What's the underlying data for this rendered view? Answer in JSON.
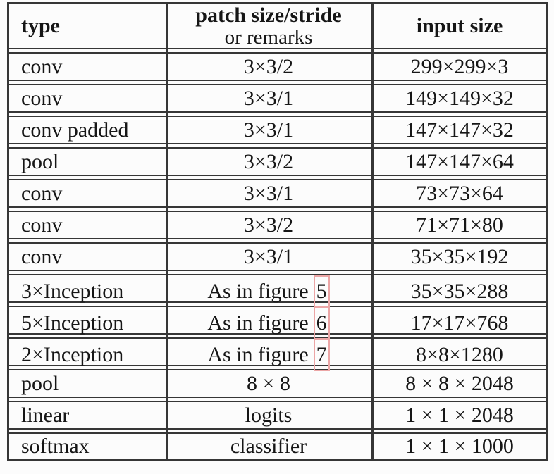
{
  "colors": {
    "background": "#fcfcfc",
    "border": "#363636",
    "text": "#161616",
    "figure_link_box": "#eca6a6"
  },
  "table": {
    "title": "network architecture table",
    "header": {
      "type": "type",
      "patch_line1": "patch size/stride",
      "patch_line2": "or remarks",
      "input": "input size"
    },
    "rows": [
      {
        "type": "conv",
        "remark": "3×3/2",
        "input": "299×299×3"
      },
      {
        "type": "conv",
        "remark": "3×3/1",
        "input": "149×149×32"
      },
      {
        "type": "conv padded",
        "remark": "3×3/1",
        "input": "147×147×32"
      },
      {
        "type": "pool",
        "remark": "3×3/2",
        "input": "147×147×64"
      },
      {
        "type": "conv",
        "remark": "3×3/1",
        "input": "73×73×64"
      },
      {
        "type": "conv",
        "remark": "3×3/2",
        "input": "71×71×80"
      },
      {
        "type": "conv",
        "remark": "3×3/1",
        "input": "35×35×192"
      },
      {
        "type": "3×Inception",
        "remark_prefix": "As in figure",
        "figure_ref": "5",
        "input": "35×35×288"
      },
      {
        "type": "5×Inception",
        "remark_prefix": "As in figure",
        "figure_ref": "6",
        "input": "17×17×768"
      },
      {
        "type": "2×Inception",
        "remark_prefix": "As in figure",
        "figure_ref": "7",
        "input": "8×8×1280"
      },
      {
        "type": "pool",
        "remark": "8 × 8",
        "input": "8 × 8 × 2048"
      },
      {
        "type": "linear",
        "remark": "logits",
        "input": "1 × 1 × 2048"
      },
      {
        "type": "softmax",
        "remark": "classifier",
        "input": "1 × 1 × 1000"
      }
    ]
  }
}
